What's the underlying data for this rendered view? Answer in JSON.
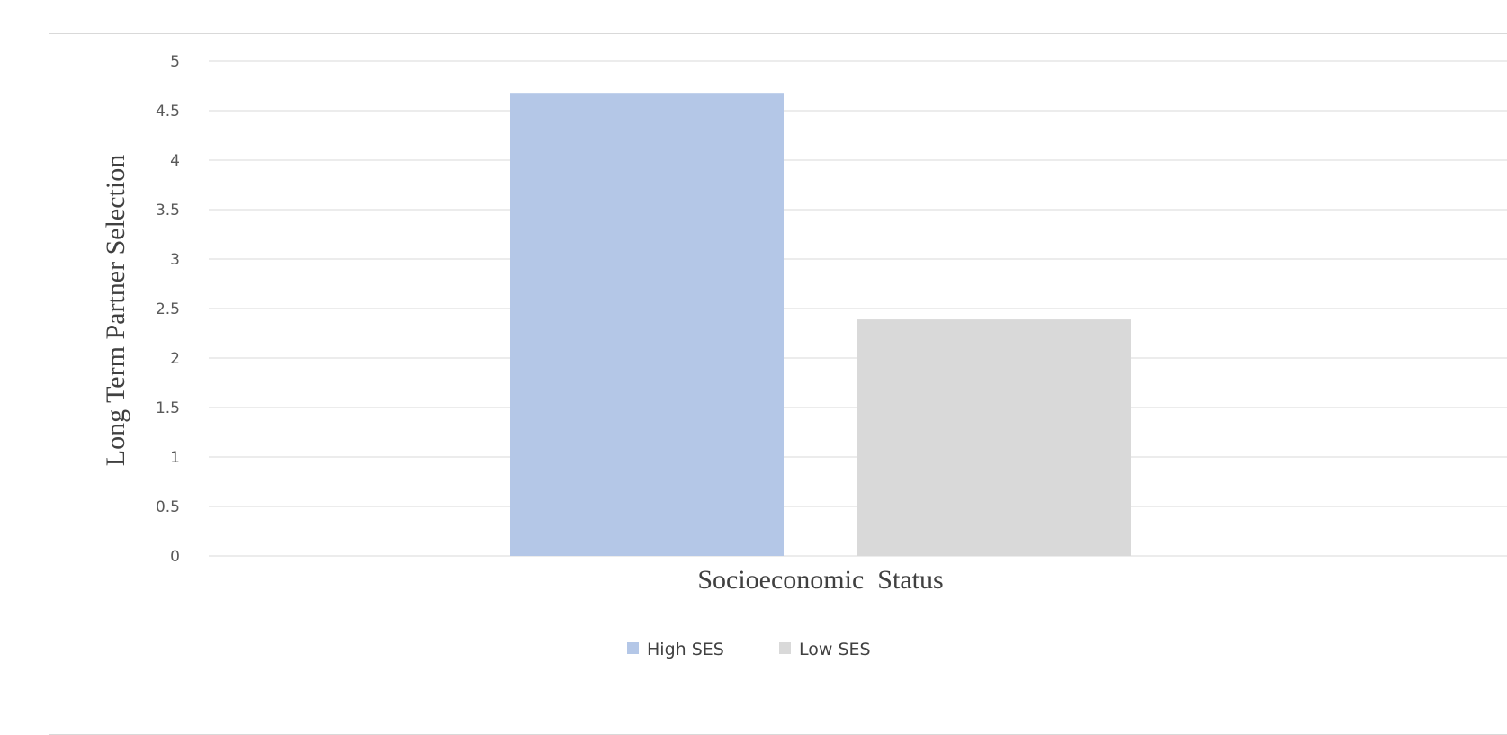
{
  "chart_data": {
    "type": "bar",
    "categories": [
      ""
    ],
    "series": [
      {
        "name": "High SES",
        "values": [
          4.68
        ],
        "color": "#b4c7e7"
      },
      {
        "name": "Low SES",
        "values": [
          2.39
        ],
        "color": "#d9d9d9"
      }
    ],
    "title": "",
    "xlabel": "Socioeconomic  Status",
    "ylabel": "Long Term  Partner  Selection",
    "ylim": [
      0,
      5
    ],
    "yticks": [
      0,
      0.5,
      1,
      1.5,
      2,
      2.5,
      3,
      3.5,
      4,
      4.5,
      5
    ],
    "ytick_labels": [
      "0",
      "0.5",
      "1",
      "1.5",
      "2",
      "2.5",
      "3",
      "3.5",
      "4",
      "4.5",
      "5"
    ],
    "grid": true,
    "legend_position": "bottom",
    "gridline_color": "#d9d9d9"
  }
}
